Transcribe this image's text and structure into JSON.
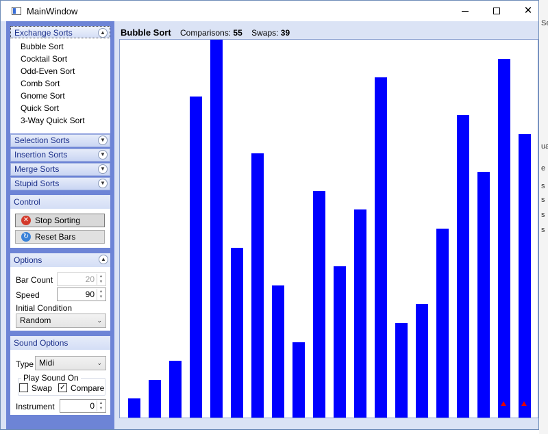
{
  "window": {
    "title": "MainWindow"
  },
  "sidebar": {
    "exchange_sorts": {
      "header": "Exchange Sorts",
      "items": [
        "Bubble Sort",
        "Cocktail Sort",
        "Odd-Even Sort",
        "Comb Sort",
        "Gnome Sort",
        "Quick Sort",
        "3-Way Quick Sort"
      ]
    },
    "collapsed_groups": [
      "Selection Sorts",
      "Insertion Sorts",
      "Merge Sorts",
      "Stupid Sorts"
    ],
    "control": {
      "title": "Control",
      "stop_label": "Stop Sorting",
      "reset_label": "Reset Bars"
    },
    "options": {
      "title": "Options",
      "bar_count_label": "Bar Count",
      "bar_count_value": "20",
      "speed_label": "Speed",
      "speed_value": "90",
      "initial_condition_label": "Initial Condition",
      "initial_condition_value": "Random"
    },
    "sound": {
      "title": "Sound Options",
      "type_label": "Type",
      "type_value": "Midi",
      "play_on_label": "Play Sound On",
      "swap_label": "Swap",
      "swap_checked": false,
      "compare_label": "Compare",
      "compare_checked": true,
      "instrument_label": "Instrument",
      "instrument_value": "0"
    }
  },
  "main": {
    "sort_name": "Bubble Sort",
    "comparisons_label": "Comparisons:",
    "comparisons_value": "55",
    "swaps_label": "Swaps:",
    "swaps_value": "39"
  },
  "chart_data": {
    "type": "bar",
    "values": [
      5,
      10,
      15,
      85,
      100,
      45,
      70,
      35,
      20,
      60,
      40,
      55,
      90,
      25,
      30,
      50,
      80,
      65,
      95,
      75
    ],
    "ylim": [
      0,
      100
    ],
    "bar_color": "#0000ff",
    "marked_bars": [
      18,
      19
    ],
    "marker_color": "#e00000"
  },
  "background_window_fragments": [
    "Se",
    "ua",
    "e",
    "s",
    "s",
    "s",
    "s"
  ]
}
